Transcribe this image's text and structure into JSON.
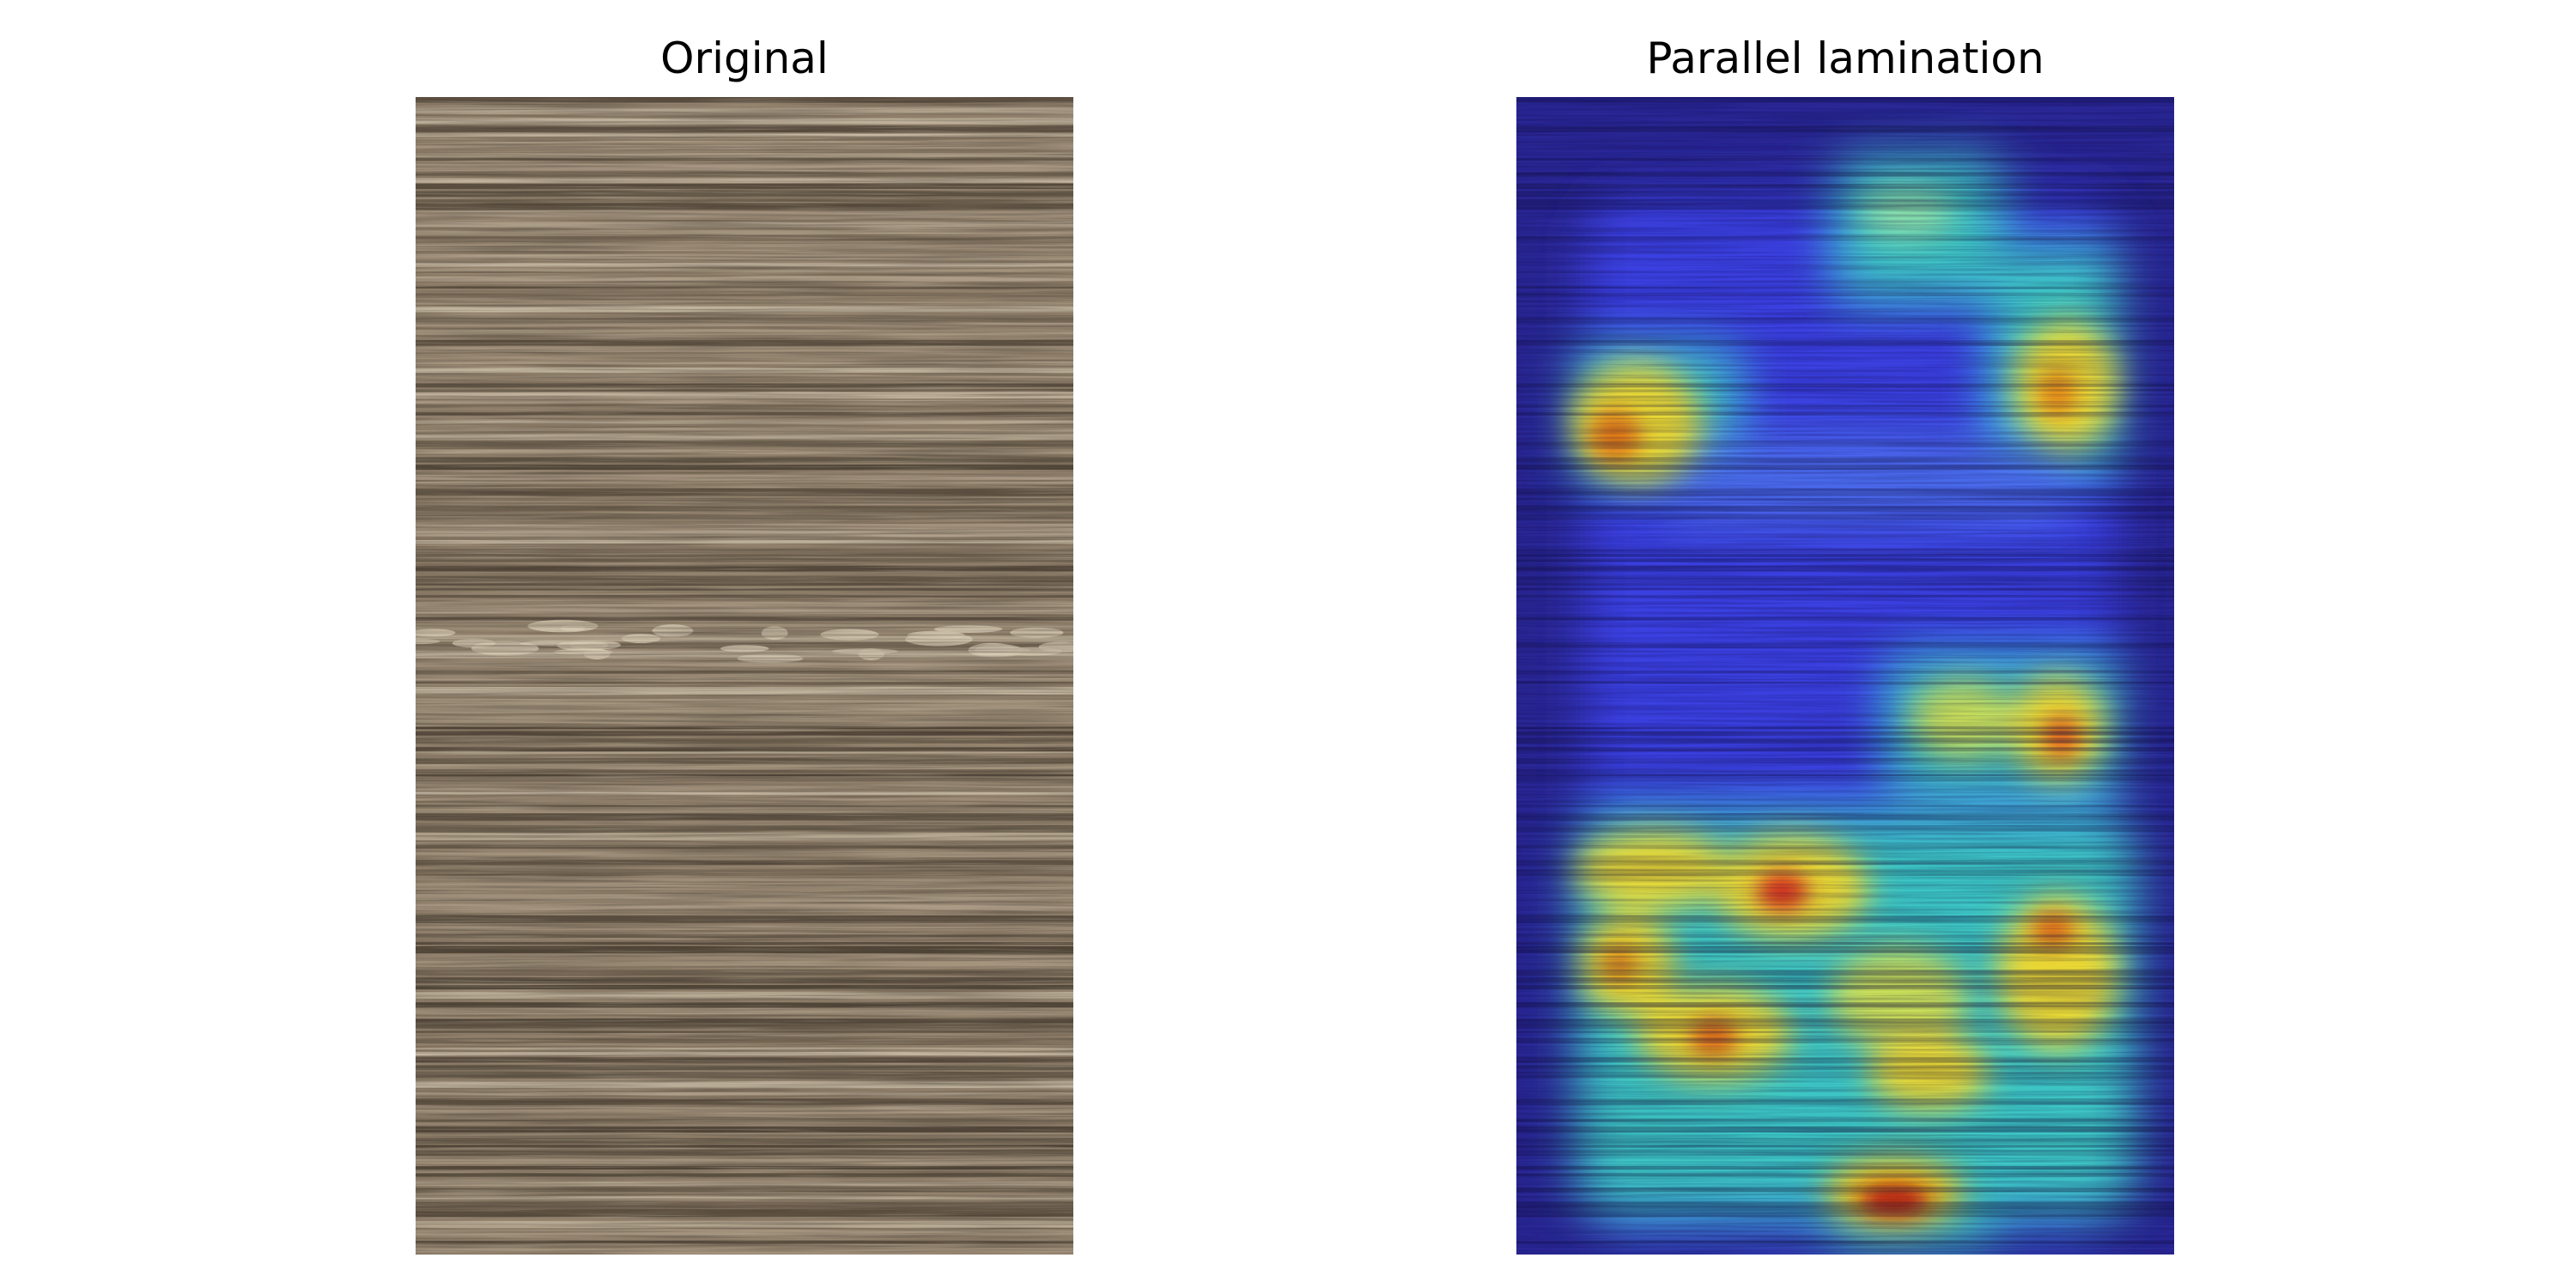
{
  "panels": [
    {
      "title": "Original",
      "content": "core photograph showing horizontal laminae"
    },
    {
      "title": "Parallel lamination",
      "content": "class activation heatmap overlaid on core photograph"
    }
  ],
  "colors": {
    "background": "#ffffff",
    "rock_base": "#8f7f6b",
    "rock_dark": "#4f4437",
    "rock_light": "#c9bca6",
    "heatmap_low": "#24209a",
    "heatmap_mid": "#3fd0c0",
    "heatmap_high": "#f2d51a",
    "heatmap_peak": "#d61f12"
  }
}
